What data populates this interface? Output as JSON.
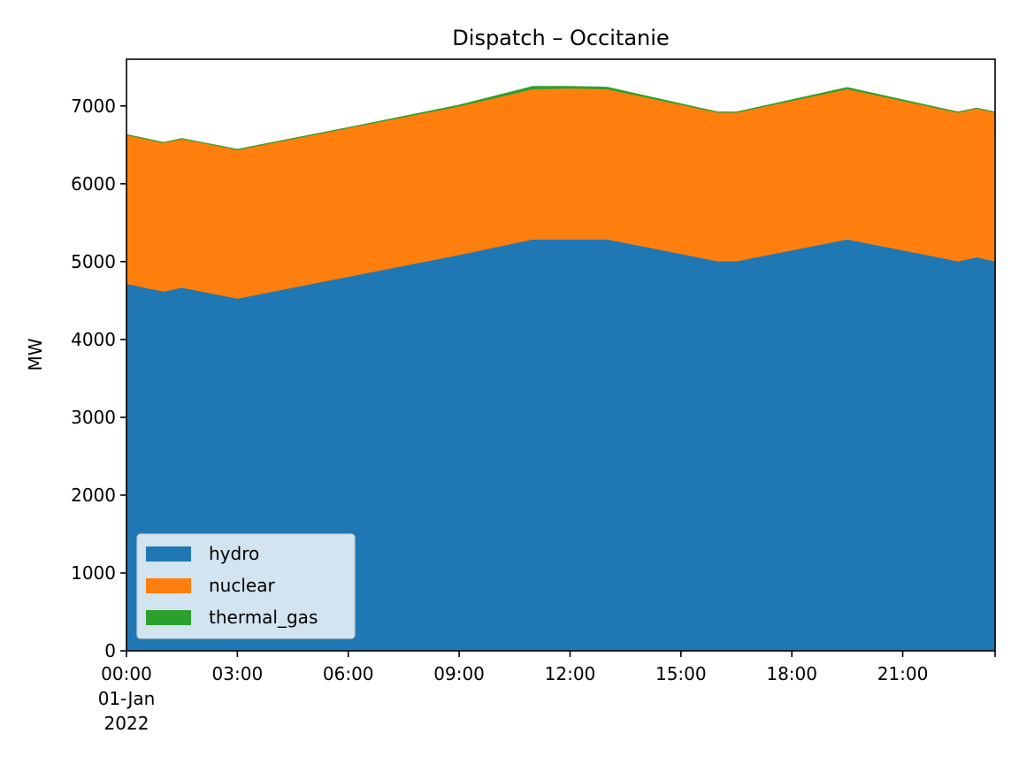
{
  "chart_data": {
    "type": "area",
    "stacked": true,
    "title": "Dispatch – Occitanie",
    "xlabel": "",
    "ylabel": "MW",
    "x_hours": [
      0,
      1,
      1.5,
      3,
      6,
      9,
      11,
      12,
      13,
      16,
      16.5,
      19.5,
      22.5,
      23,
      23.5
    ],
    "xlim_hours": [
      0,
      23.5
    ],
    "x_ticks": [
      {
        "h": 0,
        "lines": [
          "00:00",
          "01-Jan",
          "2022"
        ]
      },
      {
        "h": 3,
        "lines": [
          "03:00"
        ]
      },
      {
        "h": 6,
        "lines": [
          "06:00"
        ]
      },
      {
        "h": 9,
        "lines": [
          "09:00"
        ]
      },
      {
        "h": 12,
        "lines": [
          "12:00"
        ]
      },
      {
        "h": 15,
        "lines": [
          "15:00"
        ]
      },
      {
        "h": 18,
        "lines": [
          "18:00"
        ]
      },
      {
        "h": 21,
        "lines": [
          "21:00"
        ]
      },
      {
        "h": 24,
        "lines": [
          ""
        ]
      }
    ],
    "ylim": [
      0,
      7600
    ],
    "y_ticks": [
      0,
      1000,
      2000,
      3000,
      4000,
      5000,
      6000,
      7000
    ],
    "series": [
      {
        "name": "hydro",
        "color": "#1f77b4",
        "values": [
          4720,
          4620,
          4670,
          4530,
          4810,
          5090,
          5290,
          5290,
          5290,
          5010,
          5010,
          5290,
          5010,
          5060,
          5010
        ]
      },
      {
        "name": "nuclear",
        "color": "#ff7f0e",
        "values": [
          1910,
          1910,
          1910,
          1910,
          1910,
          1910,
          1930,
          1940,
          1930,
          1910,
          1910,
          1930,
          1910,
          1910,
          1910
        ]
      },
      {
        "name": "thermal_gas",
        "color": "#2ca02c",
        "values": [
          0,
          0,
          0,
          0,
          0,
          10,
          30,
          20,
          20,
          0,
          0,
          15,
          0,
          0,
          0
        ]
      }
    ],
    "grid": false,
    "legend_position": "lower-left"
  }
}
